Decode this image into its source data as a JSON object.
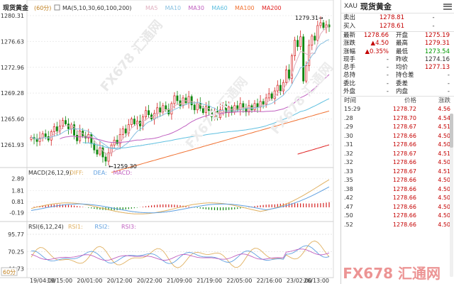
{
  "chart": {
    "title": "现货黄金",
    "period": "60分",
    "ma_label": "MA(5,10,30,60,100,200)",
    "ma_items": [
      {
        "label": "MA5",
        "color": "#e0b0c0"
      },
      {
        "label": "MA10",
        "color": "#88c0e0"
      },
      {
        "label": "MA30",
        "color": "#c060c0"
      },
      {
        "label": "MA60",
        "color": "#60c0e0"
      },
      {
        "label": "MA100",
        "color": "#f07030"
      },
      {
        "label": "MA200",
        "color": "#e02020"
      }
    ],
    "price_ticks": [
      "1280.31",
      "1276.63",
      "1272.96",
      "1269.28",
      "1265.60",
      "1261.93"
    ],
    "high_label": "1279.31",
    "low_label": "1259.30",
    "macd": {
      "label": "MACD(26,12,9)",
      "items": [
        "DIFF:",
        "DEA:",
        "MACD:"
      ],
      "ticks": [
        "2.89",
        "1.81",
        "0.81",
        "-0.19"
      ]
    },
    "rsi": {
      "label": "RSI(6,12,24)",
      "items": [
        "RSI1:",
        "RSI2:",
        "RSI3:"
      ],
      "ticks": [
        "95.77",
        "70.25",
        "44.73"
      ]
    },
    "period_selector": "60分",
    "time_labels": [
      "19/04:00",
      "19/15:00",
      "20/01:00",
      "20/12:00",
      "20/22:00",
      "21/09:00",
      "21/19:00",
      "22/05:00",
      "22/16:00",
      "23/02:00",
      "26/13:00"
    ],
    "watermark": "FX678 汇通网",
    "colors": {
      "up": "#d42020",
      "down": "#108810",
      "text_red": "#c40000",
      "text_green": "#009900"
    }
  },
  "quote": {
    "symbol": "XAU",
    "name": "现货黄金",
    "bid_ask": [
      {
        "label": "卖出",
        "value": "1278.81",
        "extra": "-"
      },
      {
        "label": "买入",
        "value": "1278.61",
        "extra": "-"
      }
    ],
    "stats": [
      {
        "k1": "最新",
        "v1": "1278.66",
        "k2": "开盘",
        "v2": "1275.19"
      },
      {
        "k1": "涨跌",
        "v1": "▲4.50",
        "k2": "最高",
        "v2": "1279.31"
      },
      {
        "k1": "涨幅",
        "v1": "▲0.35%",
        "k2": "最低",
        "v2": "1273.54"
      },
      {
        "k1": "现手",
        "v1": "-",
        "k2": "昨收",
        "v2": "1274.16"
      },
      {
        "k1": "总手",
        "v1": "-",
        "k2": "均价",
        "v2": "1277.13"
      },
      {
        "k1": "总持",
        "v1": "-",
        "k2": "持仓差",
        "v2": "-"
      },
      {
        "k1": "委比",
        "v1": "-",
        "k2": "委差",
        "v2": "-"
      },
      {
        "k1": "外盘",
        "v1": "-",
        "k2": "内盘",
        "v2": "-"
      }
    ],
    "trade_headers": {
      "time": "时间",
      "price": "价格",
      "change": "涨跌"
    },
    "trades": [
      {
        "time": "15:29",
        "price": "1278.72",
        "change": "4.56"
      },
      {
        "time": ".28",
        "price": "1278.70",
        "change": "4.54"
      },
      {
        "time": ".29",
        "price": "1278.67",
        "change": "4.51"
      },
      {
        "time": ".30",
        "price": "1278.66",
        "change": "4.50"
      },
      {
        "time": ".31",
        "price": "1278.66",
        "change": "4.50"
      },
      {
        "time": ".32",
        "price": "1278.67",
        "change": "4.51"
      },
      {
        "time": ".32",
        "price": "1278.66",
        "change": "4.50"
      },
      {
        "time": ".33",
        "price": "1278.67",
        "change": "4.51"
      },
      {
        "time": ".35",
        "price": "1278.66",
        "change": "4.50"
      },
      {
        "time": ".38",
        "price": "1278.66",
        "change": "4.50"
      },
      {
        "time": ".42",
        "price": "1278.66",
        "change": "4.50"
      },
      {
        "time": ".47",
        "price": "1278.66",
        "change": "4.50"
      },
      {
        "time": ".50",
        "price": "1278.66",
        "change": "4.50"
      },
      {
        "time": ".52",
        "price": "1278.66",
        "change": "4.50"
      }
    ]
  }
}
